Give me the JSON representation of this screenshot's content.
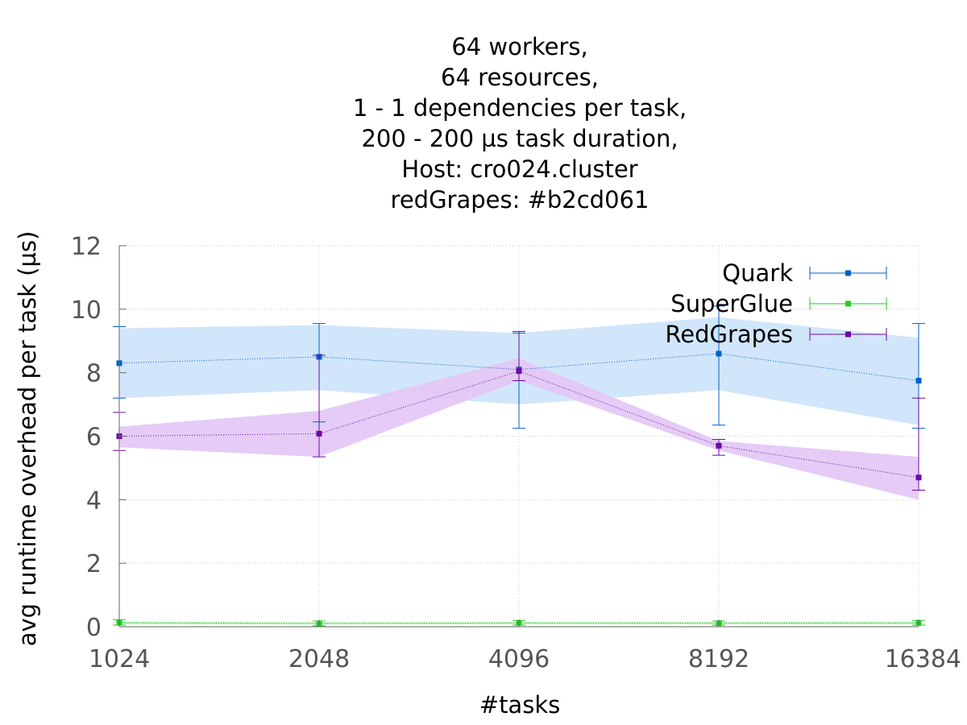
{
  "chart_data": {
    "type": "line",
    "title_lines": [
      "64 workers,",
      "64 resources,",
      "1 - 1 dependencies per task,",
      "200 - 200 µs task duration,",
      "Host: cro024.cluster",
      "redGrapes: #b2cd061"
    ],
    "xlabel": "#tasks",
    "ylabel": "avg runtime overhead per task (µs)",
    "x_scale": "log2",
    "categories": [
      "1024",
      "2048",
      "4096",
      "8192",
      "16384"
    ],
    "ylim": [
      0,
      12
    ],
    "yticks": [
      0,
      2,
      4,
      6,
      8,
      10,
      12
    ],
    "grid": true,
    "legend_position": "top-right",
    "series": [
      {
        "name": "Quark",
        "color": "#0060c8",
        "band_color": "#cfe5fb",
        "values": [
          8.3,
          8.5,
          8.1,
          8.6,
          7.75
        ],
        "error_low": [
          7.2,
          6.45,
          6.25,
          6.35,
          6.25
        ],
        "error_high": [
          9.45,
          9.55,
          9.25,
          10.1,
          9.55
        ],
        "band_low": [
          7.2,
          7.45,
          7.0,
          7.45,
          6.35
        ],
        "band_high": [
          9.4,
          9.5,
          9.25,
          9.75,
          9.1
        ]
      },
      {
        "name": "SuperGlue",
        "color": "#22cc22",
        "band_color": "#b6f0b6",
        "values": [
          0.13,
          0.1,
          0.12,
          0.11,
          0.12
        ],
        "error_low": [
          0.05,
          0.03,
          0.05,
          0.05,
          0.05
        ],
        "error_high": [
          0.22,
          0.18,
          0.2,
          0.18,
          0.2
        ],
        "band_low": [
          0.08,
          0.07,
          0.08,
          0.08,
          0.08
        ],
        "band_high": [
          0.16,
          0.14,
          0.15,
          0.15,
          0.16
        ]
      },
      {
        "name": "RedGrapes",
        "color": "#6a0aa5",
        "band_color": "#e4c8f5",
        "values": [
          6.0,
          6.08,
          8.05,
          5.7,
          4.7
        ],
        "error_low": [
          5.55,
          5.35,
          7.75,
          5.4,
          4.3
        ],
        "error_high": [
          6.75,
          8.55,
          9.3,
          5.9,
          7.2
        ],
        "band_low": [
          5.65,
          5.35,
          7.75,
          5.55,
          4.0
        ],
        "band_high": [
          6.3,
          6.8,
          8.45,
          5.85,
          5.35
        ]
      }
    ]
  }
}
